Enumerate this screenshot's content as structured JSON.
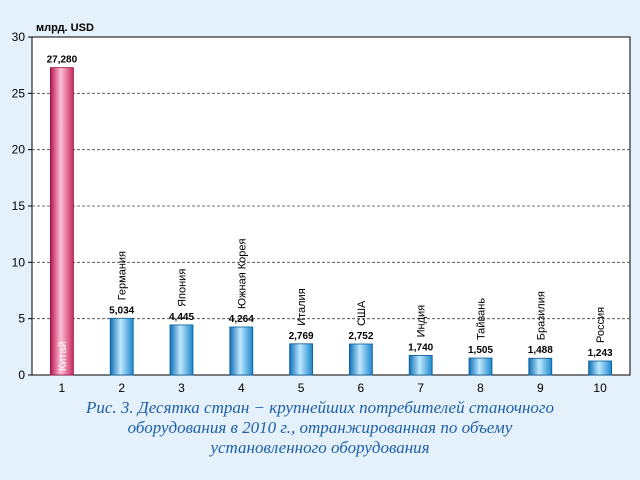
{
  "chart_data": {
    "type": "bar",
    "ylabel": "млрд. USD",
    "ylim": [
      0,
      30
    ],
    "yticks": [
      "0",
      "5",
      "10",
      "15",
      "20",
      "25",
      "30"
    ],
    "categories": [
      "1",
      "2",
      "3",
      "4",
      "5",
      "6",
      "7",
      "8",
      "9",
      "10"
    ],
    "countries": [
      "Китай",
      "Германия",
      "Япония",
      "Южная Корея",
      "Италия",
      "США",
      "Индия",
      "Тайвань",
      "Бразилия",
      "Россия"
    ],
    "values": [
      27.28,
      5.034,
      4.445,
      4.264,
      2.769,
      2.752,
      1.74,
      1.505,
      1.488,
      1.243
    ],
    "value_labels": [
      "27,280",
      "5,034",
      "4,445",
      "4,264",
      "2,769",
      "2,752",
      "1,740",
      "1,505",
      "1,488",
      "1,243"
    ],
    "grid": true,
    "highlight_color": "#e0457a",
    "bar_color": "#2aa8e8"
  },
  "caption": {
    "line1": "Рис. 3. Десятка  стран − крупнейших потребителей станочного",
    "line2": "оборудования в 2010 г., отранжированная по объему",
    "line3": "установленного оборудования"
  }
}
